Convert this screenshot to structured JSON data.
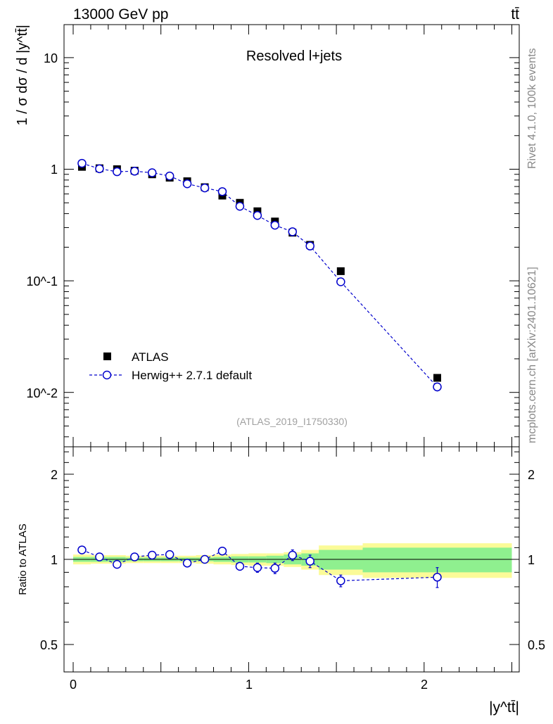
{
  "header": {
    "energy_label": "13000 GeV pp",
    "process_label": "tt̄"
  },
  "side": {
    "rivet_label": "Rivet 4.1.0,  100k events",
    "mcplots_label": "mcplots.cern.ch [arXiv:2401.10621]"
  },
  "main_plot": {
    "title": "Resolved l+jets",
    "ylabel": "1 / σ dσ / d |y^tt̄|",
    "analysis_id": "(ATLAS_2019_I1750330)",
    "ytick_labels": [
      "10^-2",
      "10^-1",
      "1",
      "10"
    ]
  },
  "ratio_plot": {
    "ylabel": "Ratio to ATLAS",
    "ytick_labels": [
      "0.5",
      "1",
      "2"
    ]
  },
  "xaxis": {
    "label": "|y^tt̄|",
    "tick_labels": [
      "0",
      "1",
      "2"
    ]
  },
  "legend": {
    "atlas_label": "ATLAS",
    "mc_label": "Herwig++ 2.7.1 default"
  },
  "colors": {
    "data": "#000000",
    "mc": "#0000cc",
    "band_inner": "#8ff08f",
    "band_outer": "#fbfb98"
  },
  "chart_data": [
    {
      "type": "scatter",
      "title": "Resolved l+jets",
      "xlabel": "|y^tt̄|",
      "ylabel": "1 / σ dσ / d |y^tt̄|",
      "yscale": "log",
      "xlim": [
        -0.05,
        2.55
      ],
      "ylim": [
        0.003,
        20
      ],
      "bin_edges": [
        0.0,
        0.1,
        0.2,
        0.3,
        0.4,
        0.5,
        0.6,
        0.7,
        0.8,
        0.9,
        1.0,
        1.1,
        1.2,
        1.3,
        1.4,
        1.65,
        2.5
      ],
      "x": [
        0.05,
        0.15,
        0.25,
        0.35,
        0.45,
        0.55,
        0.65,
        0.75,
        0.85,
        0.95,
        1.05,
        1.15,
        1.25,
        1.35,
        1.525,
        2.075
      ],
      "series": [
        {
          "name": "ATLAS",
          "marker": "filled-square",
          "values": [
            1.05,
            1.02,
            1.0,
            0.97,
            0.9,
            0.84,
            0.78,
            0.69,
            0.58,
            0.5,
            0.42,
            0.34,
            0.27,
            0.21,
            0.122,
            0.0135
          ]
        },
        {
          "name": "Herwig++ 2.7.1 default",
          "marker": "open-circle",
          "line": "dashed",
          "values": [
            1.13,
            1.01,
            0.95,
            0.96,
            0.93,
            0.87,
            0.74,
            0.68,
            0.63,
            0.465,
            0.385,
            0.315,
            0.275,
            0.205,
            0.098,
            0.0112
          ],
          "errors": [
            0.01,
            0.01,
            0.01,
            0.01,
            0.01,
            0.01,
            0.01,
            0.01,
            0.01,
            0.01,
            0.01,
            0.01,
            0.01,
            0.005,
            0.003,
            0.001
          ]
        }
      ]
    },
    {
      "type": "scatter",
      "ylabel": "Ratio to ATLAS",
      "xlabel": "|y^tt̄|",
      "yscale": "log",
      "xlim": [
        -0.05,
        2.55
      ],
      "ylim": [
        0.4,
        2.4
      ],
      "reference_line": 1,
      "bin_edges": [
        0.0,
        0.1,
        0.2,
        0.3,
        0.4,
        0.5,
        0.6,
        0.7,
        0.8,
        0.9,
        1.0,
        1.1,
        1.2,
        1.3,
        1.4,
        1.65,
        2.5
      ],
      "data_band_stat": [
        0.02,
        0.02,
        0.02,
        0.015,
        0.015,
        0.015,
        0.015,
        0.015,
        0.02,
        0.025,
        0.025,
        0.03,
        0.04,
        0.05,
        0.08,
        0.1
      ],
      "data_band_total": [
        0.04,
        0.035,
        0.035,
        0.03,
        0.03,
        0.03,
        0.03,
        0.035,
        0.04,
        0.045,
        0.05,
        0.05,
        0.06,
        0.08,
        0.12,
        0.14
      ],
      "x": [
        0.05,
        0.15,
        0.25,
        0.35,
        0.45,
        0.55,
        0.65,
        0.75,
        0.85,
        0.95,
        1.05,
        1.15,
        1.25,
        1.35,
        1.525,
        2.075
      ],
      "series": [
        {
          "name": "Herwig++ 2.7.1 default",
          "values": [
            1.08,
            1.02,
            0.96,
            1.02,
            1.035,
            1.04,
            0.97,
            1.0,
            1.07,
            0.945,
            0.935,
            0.93,
            1.035,
            0.985,
            0.84,
            0.865
          ],
          "errors": [
            0.015,
            0.015,
            0.015,
            0.015,
            0.015,
            0.015,
            0.02,
            0.02,
            0.03,
            0.03,
            0.035,
            0.04,
            0.045,
            0.05,
            0.04,
            0.07
          ]
        }
      ]
    }
  ]
}
